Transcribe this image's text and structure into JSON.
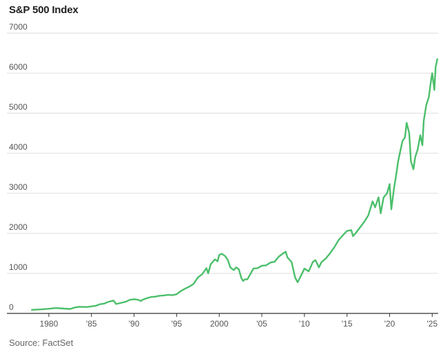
{
  "chart_data": {
    "type": "line",
    "title": "S&P 500 Index",
    "source": "Source: FactSet",
    "xlabel": "",
    "ylabel": "",
    "xlim": [
      1977.5,
      2025.7
    ],
    "ylim": [
      0,
      7000
    ],
    "grid": true,
    "legend": "none",
    "line_color": "#4bbf6b",
    "grid_color": "#dddddd",
    "axis_color": "#333333",
    "yticks": [
      {
        "value": 0,
        "label": "0"
      },
      {
        "value": 1000,
        "label": "1000"
      },
      {
        "value": 2000,
        "label": "2000"
      },
      {
        "value": 3000,
        "label": "3000"
      },
      {
        "value": 4000,
        "label": "4000"
      },
      {
        "value": 5000,
        "label": "5000"
      },
      {
        "value": 6000,
        "label": "6000"
      },
      {
        "value": 7000,
        "label": "7000"
      }
    ],
    "xticks": [
      {
        "value": 1980,
        "label": "1980"
      },
      {
        "value": 1985,
        "label": "'85"
      },
      {
        "value": 1990,
        "label": "'90"
      },
      {
        "value": 1995,
        "label": "'95"
      },
      {
        "value": 2000,
        "label": "2000"
      },
      {
        "value": 2005,
        "label": "'05"
      },
      {
        "value": 2010,
        "label": "'10"
      },
      {
        "value": 2015,
        "label": "'15"
      },
      {
        "value": 2020,
        "label": "'20"
      },
      {
        "value": 2025,
        "label": "'25"
      }
    ],
    "series": [
      {
        "name": "S&P 500 Index",
        "points": [
          [
            1978.0,
            90
          ],
          [
            1979.0,
            100
          ],
          [
            1980.0,
            115
          ],
          [
            1980.8,
            135
          ],
          [
            1981.5,
            125
          ],
          [
            1982.5,
            110
          ],
          [
            1983.0,
            145
          ],
          [
            1983.5,
            165
          ],
          [
            1984.5,
            160
          ],
          [
            1985.0,
            175
          ],
          [
            1985.5,
            190
          ],
          [
            1986.0,
            230
          ],
          [
            1986.5,
            245
          ],
          [
            1987.0,
            290
          ],
          [
            1987.6,
            320
          ],
          [
            1987.9,
            235
          ],
          [
            1988.5,
            265
          ],
          [
            1989.0,
            290
          ],
          [
            1989.5,
            340
          ],
          [
            1990.0,
            355
          ],
          [
            1990.5,
            340
          ],
          [
            1990.8,
            310
          ],
          [
            1991.0,
            340
          ],
          [
            1991.5,
            380
          ],
          [
            1992.0,
            410
          ],
          [
            1992.5,
            420
          ],
          [
            1993.0,
            440
          ],
          [
            1993.5,
            450
          ],
          [
            1994.0,
            465
          ],
          [
            1994.5,
            455
          ],
          [
            1995.0,
            480
          ],
          [
            1995.5,
            560
          ],
          [
            1996.0,
            620
          ],
          [
            1996.5,
            670
          ],
          [
            1997.0,
            740
          ],
          [
            1997.5,
            900
          ],
          [
            1998.0,
            980
          ],
          [
            1998.5,
            1130
          ],
          [
            1998.7,
            1000
          ],
          [
            1999.0,
            1230
          ],
          [
            1999.5,
            1350
          ],
          [
            1999.8,
            1300
          ],
          [
            2000.0,
            1460
          ],
          [
            2000.3,
            1490
          ],
          [
            2000.7,
            1430
          ],
          [
            2001.0,
            1340
          ],
          [
            2001.3,
            1150
          ],
          [
            2001.7,
            1080
          ],
          [
            2002.0,
            1150
          ],
          [
            2002.3,
            1100
          ],
          [
            2002.6,
            880
          ],
          [
            2002.8,
            810
          ],
          [
            2003.0,
            850
          ],
          [
            2003.3,
            850
          ],
          [
            2003.7,
            1000
          ],
          [
            2004.0,
            1120
          ],
          [
            2004.5,
            1130
          ],
          [
            2005.0,
            1190
          ],
          [
            2005.5,
            1200
          ],
          [
            2006.0,
            1270
          ],
          [
            2006.5,
            1290
          ],
          [
            2007.0,
            1420
          ],
          [
            2007.5,
            1500
          ],
          [
            2007.8,
            1540
          ],
          [
            2008.0,
            1400
          ],
          [
            2008.5,
            1280
          ],
          [
            2008.9,
            900
          ],
          [
            2009.2,
            780
          ],
          [
            2009.5,
            900
          ],
          [
            2010.0,
            1120
          ],
          [
            2010.5,
            1050
          ],
          [
            2011.0,
            1290
          ],
          [
            2011.3,
            1330
          ],
          [
            2011.7,
            1150
          ],
          [
            2012.0,
            1280
          ],
          [
            2012.5,
            1370
          ],
          [
            2013.0,
            1500
          ],
          [
            2013.5,
            1650
          ],
          [
            2014.0,
            1830
          ],
          [
            2014.5,
            1950
          ],
          [
            2015.0,
            2060
          ],
          [
            2015.5,
            2080
          ],
          [
            2015.7,
            1930
          ],
          [
            2016.0,
            2000
          ],
          [
            2016.5,
            2140
          ],
          [
            2017.0,
            2280
          ],
          [
            2017.5,
            2450
          ],
          [
            2018.0,
            2800
          ],
          [
            2018.3,
            2650
          ],
          [
            2018.7,
            2900
          ],
          [
            2018.95,
            2500
          ],
          [
            2019.3,
            2900
          ],
          [
            2019.7,
            3000
          ],
          [
            2020.0,
            3230
          ],
          [
            2020.2,
            2600
          ],
          [
            2020.5,
            3100
          ],
          [
            2020.8,
            3500
          ],
          [
            2021.0,
            3800
          ],
          [
            2021.5,
            4300
          ],
          [
            2021.8,
            4400
          ],
          [
            2022.0,
            4760
          ],
          [
            2022.3,
            4500
          ],
          [
            2022.5,
            3800
          ],
          [
            2022.8,
            3600
          ],
          [
            2023.0,
            3900
          ],
          [
            2023.3,
            4100
          ],
          [
            2023.6,
            4450
          ],
          [
            2023.85,
            4200
          ],
          [
            2024.0,
            4800
          ],
          [
            2024.3,
            5200
          ],
          [
            2024.6,
            5400
          ],
          [
            2024.9,
            5880
          ],
          [
            2025.0,
            6000
          ],
          [
            2025.25,
            5580
          ],
          [
            2025.4,
            6150
          ],
          [
            2025.6,
            6350
          ]
        ]
      }
    ]
  }
}
